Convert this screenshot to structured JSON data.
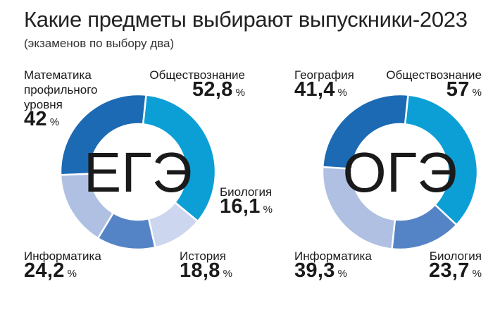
{
  "header": {
    "title": "Какие предметы выбирают выпускники-2023",
    "subtitle": "(экзаменов по выбору два)"
  },
  "colors": {
    "teal": "#0b9fd6",
    "dark_blue": "#1c6ab3",
    "mid_blue": "#5584c6",
    "light_periwinkle": "#afc0e3",
    "pale_periwinkle": "#ccd6ef"
  },
  "chart_data": [
    {
      "type": "pie",
      "variant": "donut",
      "center_label": "ЕГЭ",
      "unit": "%",
      "slices": [
        {
          "name": "Обществознание",
          "value": 52.8,
          "display": "52,8",
          "color": "#0b9fd6"
        },
        {
          "name": "Биология",
          "value": 16.1,
          "display": "16,1",
          "color": "#ccd6ef"
        },
        {
          "name": "История",
          "value": 18.8,
          "display": "18,8",
          "color": "#5584c6"
        },
        {
          "name": "Информатика",
          "value": 24.2,
          "display": "24,2",
          "color": "#afc0e3"
        },
        {
          "name": "Математика профильного уровня",
          "value": 42,
          "display": "42",
          "color": "#1c6ab3"
        }
      ]
    },
    {
      "type": "pie",
      "variant": "donut",
      "center_label": "ОГЭ",
      "unit": "%",
      "slices": [
        {
          "name": "Обществознание",
          "value": 57,
          "display": "57",
          "color": "#0b9fd6"
        },
        {
          "name": "Биология",
          "value": 23.7,
          "display": "23,7",
          "color": "#5584c6"
        },
        {
          "name": "Информатика",
          "value": 39.3,
          "display": "39,3",
          "color": "#afc0e3"
        },
        {
          "name": "География",
          "value": 41.4,
          "display": "41,4",
          "color": "#1c6ab3"
        }
      ]
    }
  ],
  "labels": {
    "ege": {
      "math_line1": "Математика",
      "math_line2": "профильного",
      "math_line3": "уровня"
    }
  }
}
